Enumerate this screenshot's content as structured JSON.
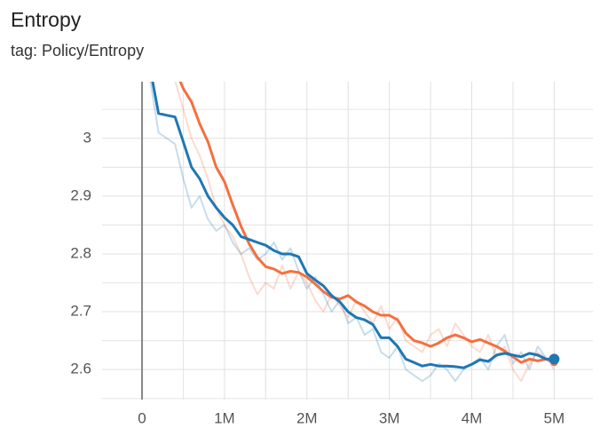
{
  "chart_data": {
    "type": "line",
    "title": "Entropy",
    "subtitle": "tag: Policy/Entropy",
    "xlim": [
      -485000,
      5470000
    ],
    "ylim": [
      2.548,
      3.098
    ],
    "xticks": [
      0,
      {
        "value": 1000000,
        "label": "1M"
      },
      {
        "value": 2000000,
        "label": "2M"
      },
      {
        "value": 3000000,
        "label": "3M"
      },
      {
        "value": 4000000,
        "label": "4M"
      },
      {
        "value": 5000000,
        "label": "5M"
      }
    ],
    "yticks": [
      2.6,
      2.7,
      2.8,
      2.9,
      3
    ],
    "grid": true,
    "series": [
      {
        "color": "#1f77b4",
        "opacity": 0.25,
        "x": [
          100000,
          200000,
          300000,
          400000,
          500000,
          600000,
          700000,
          800000,
          900000,
          1000000,
          1100000,
          1200000,
          1300000,
          1400000,
          1500000,
          1600000,
          1700000,
          1800000,
          1900000,
          2000000,
          2100000,
          2200000,
          2300000,
          2400000,
          2500000,
          2600000,
          2700000,
          2800000,
          2900000,
          3000000,
          3100000,
          3200000,
          3300000,
          3400000,
          3500000,
          3600000,
          3700000,
          3800000,
          3900000,
          4000000,
          4100000,
          4200000,
          4300000,
          4400000,
          4500000,
          4600000,
          4700000,
          4800000,
          4900000,
          5000000
        ],
        "values": [
          3.1,
          3.01,
          3.0,
          2.99,
          2.93,
          2.88,
          2.9,
          2.86,
          2.84,
          2.85,
          2.82,
          2.8,
          2.81,
          2.79,
          2.8,
          2.82,
          2.79,
          2.81,
          2.77,
          2.74,
          2.76,
          2.73,
          2.7,
          2.72,
          2.68,
          2.69,
          2.66,
          2.67,
          2.63,
          2.62,
          2.64,
          2.6,
          2.59,
          2.58,
          2.59,
          2.61,
          2.6,
          2.58,
          2.6,
          2.61,
          2.62,
          2.6,
          2.64,
          2.66,
          2.61,
          2.63,
          2.6,
          2.64,
          2.62,
          2.61
        ]
      },
      {
        "color": "#f4703f",
        "opacity": 0.25,
        "x": [
          400000,
          500000,
          600000,
          700000,
          800000,
          900000,
          1000000,
          1100000,
          1200000,
          1300000,
          1400000,
          1500000,
          1600000,
          1700000,
          1800000,
          1900000,
          2000000,
          2100000,
          2200000,
          2300000,
          2400000,
          2500000,
          2600000,
          2700000,
          2800000,
          2900000,
          3000000,
          3100000,
          3200000,
          3300000,
          3400000,
          3500000,
          3600000,
          3700000,
          3800000,
          3900000,
          4000000,
          4100000,
          4200000,
          4300000,
          4400000,
          4500000,
          4600000,
          4700000,
          4800000,
          4900000,
          5000000
        ],
        "values": [
          3.1,
          3.05,
          3.0,
          2.97,
          2.93,
          2.88,
          2.85,
          2.83,
          2.8,
          2.76,
          2.73,
          2.75,
          2.74,
          2.78,
          2.74,
          2.77,
          2.75,
          2.72,
          2.7,
          2.73,
          2.71,
          2.69,
          2.72,
          2.7,
          2.68,
          2.71,
          2.67,
          2.69,
          2.65,
          2.64,
          2.63,
          2.66,
          2.67,
          2.64,
          2.68,
          2.66,
          2.64,
          2.63,
          2.66,
          2.62,
          2.64,
          2.6,
          2.58,
          2.61,
          2.63,
          2.62,
          2.6
        ]
      },
      {
        "color": "#f4703f",
        "opacity": 1,
        "x": [
          400000,
          500000,
          600000,
          700000,
          800000,
          900000,
          1000000,
          1100000,
          1200000,
          1300000,
          1400000,
          1500000,
          1600000,
          1700000,
          1800000,
          1900000,
          2000000,
          2100000,
          2200000,
          2300000,
          2400000,
          2500000,
          2600000,
          2700000,
          2800000,
          2900000,
          3000000,
          3100000,
          3200000,
          3300000,
          3400000,
          3500000,
          3600000,
          3700000,
          3800000,
          3900000,
          4000000,
          4100000,
          4200000,
          4300000,
          4400000,
          4500000,
          4600000,
          4700000,
          4800000,
          4900000,
          5000000
        ],
        "values": [
          3.12,
          3.086,
          3.063,
          3.025,
          2.994,
          2.95,
          2.925,
          2.885,
          2.848,
          2.817,
          2.794,
          2.778,
          2.774,
          2.766,
          2.77,
          2.768,
          2.76,
          2.748,
          2.735,
          2.725,
          2.722,
          2.728,
          2.717,
          2.71,
          2.7,
          2.694,
          2.694,
          2.686,
          2.663,
          2.65,
          2.646,
          2.64,
          2.646,
          2.655,
          2.66,
          2.655,
          2.648,
          2.652,
          2.646,
          2.64,
          2.632,
          2.622,
          2.612,
          2.618,
          2.615,
          2.618,
          2.612
        ]
      },
      {
        "color": "#1f77b4",
        "opacity": 1,
        "x": [
          100000,
          200000,
          300000,
          400000,
          500000,
          600000,
          700000,
          800000,
          900000,
          1000000,
          1100000,
          1200000,
          1300000,
          1400000,
          1500000,
          1600000,
          1700000,
          1800000,
          1900000,
          2000000,
          2100000,
          2200000,
          2300000,
          2400000,
          2500000,
          2600000,
          2700000,
          2800000,
          2900000,
          3000000,
          3100000,
          3200000,
          3300000,
          3400000,
          3500000,
          3600000,
          3700000,
          3800000,
          3900000,
          4000000,
          4100000,
          4200000,
          4300000,
          4400000,
          4500000,
          4600000,
          4700000,
          4800000,
          4900000,
          5000000
        ],
        "values": [
          3.12,
          3.043,
          3.04,
          3.037,
          2.994,
          2.95,
          2.93,
          2.9,
          2.88,
          2.863,
          2.85,
          2.83,
          2.825,
          2.82,
          2.815,
          2.806,
          2.8,
          2.8,
          2.795,
          2.766,
          2.755,
          2.745,
          2.728,
          2.717,
          2.7,
          2.69,
          2.686,
          2.678,
          2.655,
          2.655,
          2.64,
          2.618,
          2.612,
          2.606,
          2.609,
          2.606,
          2.606,
          2.605,
          2.603,
          2.609,
          2.617,
          2.614,
          2.625,
          2.628,
          2.625,
          2.622,
          2.628,
          2.625,
          2.618,
          2.618
        ]
      }
    ]
  }
}
